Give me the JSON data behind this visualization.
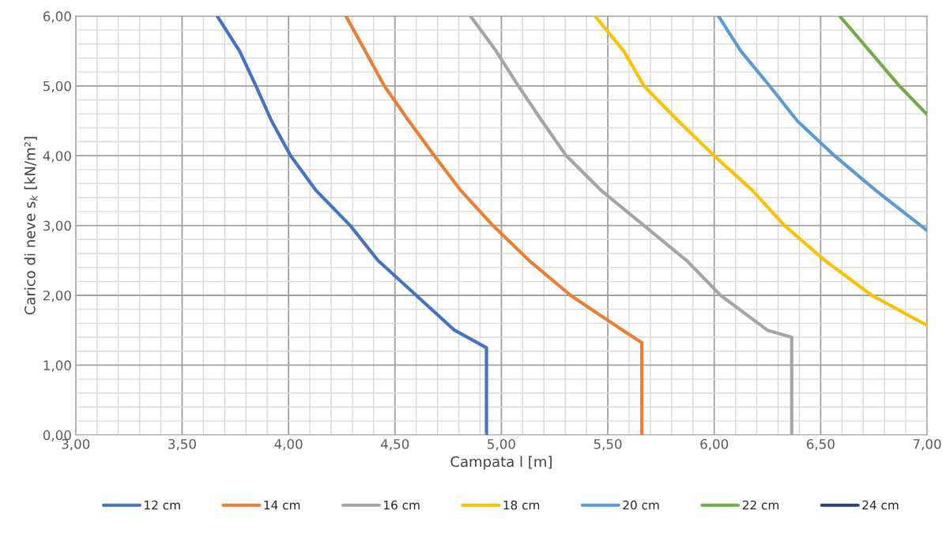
{
  "chart_data": {
    "type": "line",
    "xlabel": "Campata l [m]",
    "ylabel": "Carico di neve s$_{k}$ [kN/m²]",
    "xlim": [
      3,
      7
    ],
    "ylim": [
      0,
      6
    ],
    "xticks": [
      {
        "value": 3,
        "label": "3,00"
      },
      {
        "value": 3.5,
        "label": "3,50"
      },
      {
        "value": 4,
        "label": "4,00"
      },
      {
        "value": 4.5,
        "label": "4,50"
      },
      {
        "value": 5,
        "label": "5,00"
      },
      {
        "value": 5.5,
        "label": "5,50"
      },
      {
        "value": 6,
        "label": "6,00"
      },
      {
        "value": 6.5,
        "label": "6,50"
      },
      {
        "value": 7,
        "label": "7,00"
      }
    ],
    "yticks": [
      {
        "value": 0,
        "label": "0,00"
      },
      {
        "value": 1,
        "label": "1,00"
      },
      {
        "value": 2,
        "label": "2,00"
      },
      {
        "value": 3,
        "label": "3,00"
      },
      {
        "value": 4,
        "label": "4,00"
      },
      {
        "value": 5,
        "label": "5,00"
      },
      {
        "value": 6,
        "label": "6,00"
      }
    ],
    "grid": true,
    "legend": "bottom",
    "marker": "none",
    "line_style": "solid",
    "series": [
      {
        "name": "12 cm",
        "color": "#4472c4",
        "x": [
          3.665,
          3.77,
          3.847,
          3.92,
          4.01,
          4.13,
          4.29,
          4.42,
          4.6,
          4.78,
          4.93,
          4.93
        ],
        "values": [
          6.0,
          5.5,
          5.0,
          4.5,
          4.0,
          3.5,
          3.0,
          2.5,
          2.0,
          1.5,
          1.25,
          0
        ]
      },
      {
        "name": "14 cm",
        "color": "#ed7d31",
        "x": [
          4.27,
          4.36,
          4.45,
          4.565,
          4.685,
          4.81,
          4.96,
          5.13,
          5.325,
          5.57,
          5.66,
          5.66
        ],
        "values": [
          6.0,
          5.5,
          5.0,
          4.5,
          4.0,
          3.5,
          3.0,
          2.5,
          2.0,
          1.5,
          1.32,
          0
        ]
      },
      {
        "name": "16 cm",
        "color": "#a5a5a5",
        "x": [
          4.855,
          4.975,
          5.08,
          5.19,
          5.305,
          5.47,
          5.67,
          5.87,
          6.03,
          6.25,
          6.364,
          6.364
        ],
        "values": [
          6.0,
          5.5,
          5.0,
          4.5,
          4.0,
          3.5,
          3.0,
          2.5,
          2.0,
          1.5,
          1.4,
          0
        ]
      },
      {
        "name": "18 cm",
        "color": "#ffc000",
        "x": [
          5.44,
          5.575,
          5.67,
          5.83,
          6.0,
          6.18,
          6.33,
          6.52,
          6.74,
          7.0
        ],
        "values": [
          6.0,
          5.5,
          5.0,
          4.5,
          4.0,
          3.5,
          3.0,
          2.5,
          2.0,
          1.57
        ]
      },
      {
        "name": "20 cm",
        "color": "#5b9bd5",
        "x": [
          6.02,
          6.125,
          6.26,
          6.39,
          6.565,
          6.76,
          7.0
        ],
        "values": [
          6.0,
          5.5,
          5.0,
          4.5,
          4.0,
          3.5,
          2.93
        ]
      },
      {
        "name": "22 cm",
        "color": "#70ad47",
        "x": [
          6.59,
          6.73,
          6.87,
          7.0
        ],
        "values": [
          6.0,
          5.5,
          5.0,
          4.59
        ]
      },
      {
        "name": "24 cm",
        "color": "#264478"
      }
    ]
  }
}
